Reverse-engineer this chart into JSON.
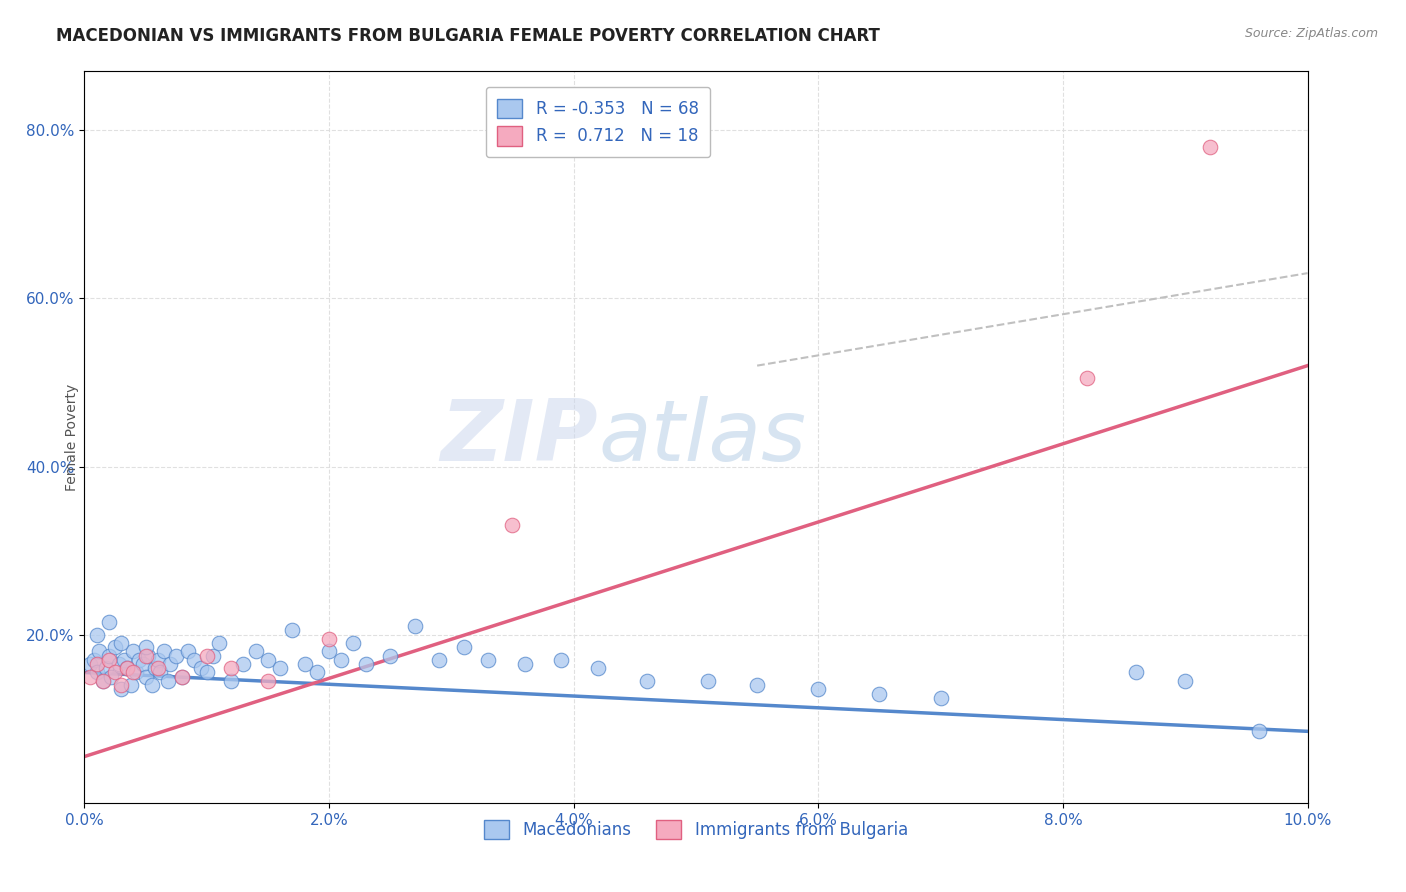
{
  "title": "MACEDONIAN VS IMMIGRANTS FROM BULGARIA FEMALE POVERTY CORRELATION CHART",
  "source": "Source: ZipAtlas.com",
  "xlabel_ticks": [
    "0.0%",
    "2.0%",
    "4.0%",
    "6.0%",
    "8.0%",
    "10.0%"
  ],
  "xlabel_vals": [
    0.0,
    2.0,
    4.0,
    6.0,
    8.0,
    10.0
  ],
  "ylabel_ticks": [
    "20.0%",
    "40.0%",
    "60.0%",
    "80.0%"
  ],
  "ylabel_vals": [
    20.0,
    40.0,
    60.0,
    80.0
  ],
  "ylabel_label": "Female Poverty",
  "blue_r": "-0.353",
  "blue_n": "68",
  "pink_r": "0.712",
  "pink_n": "18",
  "blue_color": "#aac8ef",
  "pink_color": "#f5aabf",
  "blue_line_color": "#5588cc",
  "pink_line_color": "#e06080",
  "dashed_line_color": "#c0c0c0",
  "title_color": "#222222",
  "axis_color": "#3366bb",
  "watermark_zip": "ZIP",
  "watermark_atlas": "atlas",
  "blue_scatter_x": [
    0.05,
    0.08,
    0.1,
    0.12,
    0.15,
    0.18,
    0.2,
    0.22,
    0.25,
    0.28,
    0.3,
    0.32,
    0.35,
    0.38,
    0.4,
    0.42,
    0.45,
    0.48,
    0.5,
    0.52,
    0.55,
    0.58,
    0.6,
    0.62,
    0.65,
    0.68,
    0.7,
    0.75,
    0.8,
    0.85,
    0.9,
    0.95,
    1.0,
    1.05,
    1.1,
    1.2,
    1.3,
    1.4,
    1.5,
    1.6,
    1.7,
    1.8,
    1.9,
    2.0,
    2.1,
    2.2,
    2.3,
    2.5,
    2.7,
    2.9,
    3.1,
    3.3,
    3.6,
    3.9,
    4.2,
    4.6,
    5.1,
    5.5,
    6.0,
    6.5,
    7.0,
    8.6,
    9.0,
    9.6,
    0.1,
    0.2,
    0.3,
    0.5
  ],
  "blue_scatter_y": [
    16.5,
    17.0,
    15.5,
    18.0,
    14.5,
    16.0,
    17.5,
    15.0,
    18.5,
    16.5,
    13.5,
    17.0,
    16.0,
    14.0,
    18.0,
    15.5,
    17.0,
    16.5,
    15.0,
    17.5,
    14.0,
    16.0,
    17.0,
    15.5,
    18.0,
    14.5,
    16.5,
    17.5,
    15.0,
    18.0,
    17.0,
    16.0,
    15.5,
    17.5,
    19.0,
    14.5,
    16.5,
    18.0,
    17.0,
    16.0,
    20.5,
    16.5,
    15.5,
    18.0,
    17.0,
    19.0,
    16.5,
    17.5,
    21.0,
    17.0,
    18.5,
    17.0,
    16.5,
    17.0,
    16.0,
    14.5,
    14.5,
    14.0,
    13.5,
    13.0,
    12.5,
    15.5,
    14.5,
    8.5,
    20.0,
    21.5,
    19.0,
    18.5
  ],
  "pink_scatter_x": [
    0.05,
    0.1,
    0.15,
    0.2,
    0.25,
    0.3,
    0.35,
    0.4,
    0.5,
    0.6,
    0.8,
    1.0,
    1.2,
    1.5,
    2.0,
    3.5,
    8.2,
    9.2
  ],
  "pink_scatter_y": [
    15.0,
    16.5,
    14.5,
    17.0,
    15.5,
    14.0,
    16.0,
    15.5,
    17.5,
    16.0,
    15.0,
    17.5,
    16.0,
    14.5,
    19.5,
    33.0,
    50.5,
    78.0
  ],
  "blue_line_x": [
    0.0,
    10.0
  ],
  "blue_line_y": [
    15.5,
    8.5
  ],
  "pink_line_x": [
    0.0,
    10.0
  ],
  "pink_line_y": [
    5.5,
    52.0
  ],
  "dashed_line_x": [
    5.5,
    10.0
  ],
  "dashed_line_y": [
    52.0,
    63.0
  ],
  "xlim": [
    0.0,
    10.0
  ],
  "ylim": [
    0.0,
    87.0
  ],
  "figsize": [
    14.06,
    8.92
  ],
  "dpi": 100
}
